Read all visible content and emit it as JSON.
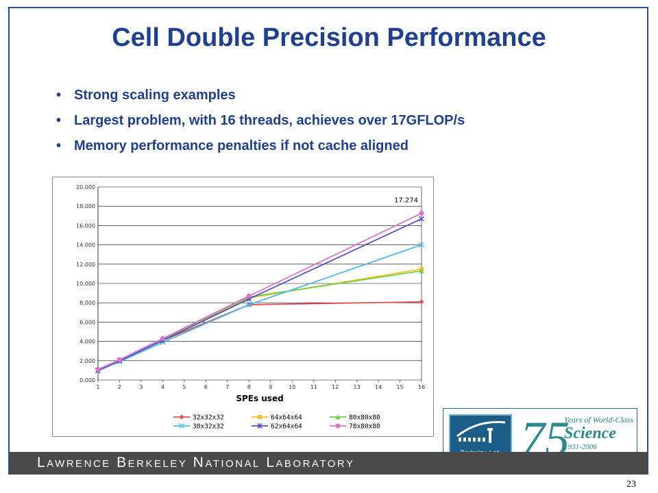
{
  "slide": {
    "title": "Cell Double Precision Performance",
    "bullets": [
      "Strong scaling examples",
      "Largest problem, with 16 threads, achieves over 17GFLOP/s",
      "Memory performance penalties if not cache aligned"
    ],
    "footer": "Lawrence Berkeley National Laboratory",
    "page_number": "23",
    "colors": {
      "title": "#1f3f8f",
      "frame": "#2b4f8c",
      "footer_bar": "#4a4a4a"
    }
  },
  "logo": {
    "lab_label": "Berkeley Lab",
    "anniversary_number": "75",
    "line1": "Years of World-Class",
    "line2": "Science",
    "line3": "1931-2006"
  },
  "chart_data": {
    "type": "line",
    "xlabel": "SPEs used",
    "ylabel": "",
    "x_categories": [
      1,
      2,
      3,
      4,
      5,
      6,
      7,
      8,
      9,
      10,
      11,
      12,
      13,
      14,
      15,
      16
    ],
    "y_ticks": [
      "0.000",
      "2.000",
      "4.000",
      "6.000",
      "8.000",
      "10.000",
      "12.000",
      "14.000",
      "16.000",
      "18.000",
      "20.000"
    ],
    "ylim": [
      0,
      20
    ],
    "grid": true,
    "legend_position": "bottom",
    "annotation": {
      "text": "17.274",
      "series": "78x80x80",
      "x": 16
    },
    "series": [
      {
        "name": "32x32x32",
        "color": "#e05050",
        "marker": "diamond",
        "x": [
          1,
          2,
          4,
          8,
          16
        ],
        "values": [
          1.0,
          2.0,
          4.1,
          7.8,
          8.1
        ]
      },
      {
        "name": "64x64x64",
        "color": "#f4c030",
        "marker": "square",
        "x": [
          1,
          2,
          4,
          8,
          16
        ],
        "values": [
          1.05,
          2.1,
          4.2,
          8.5,
          11.5
        ]
      },
      {
        "name": "80x80x80",
        "color": "#70d040",
        "marker": "triangle",
        "x": [
          1,
          2,
          4,
          8,
          16
        ],
        "values": [
          1.0,
          2.1,
          4.2,
          8.6,
          11.3
        ]
      },
      {
        "name": "30x32x32",
        "color": "#50b8e8",
        "marker": "x",
        "x": [
          1,
          2,
          4,
          8,
          16
        ],
        "values": [
          0.95,
          1.9,
          3.9,
          7.8,
          14.0
        ]
      },
      {
        "name": "62x64x64",
        "color": "#5050c8",
        "marker": "star",
        "x": [
          1,
          2,
          4,
          8,
          16
        ],
        "values": [
          1.0,
          2.0,
          4.1,
          8.4,
          16.7
        ]
      },
      {
        "name": "78x80x80",
        "color": "#e070d0",
        "marker": "circle",
        "x": [
          1,
          2,
          4,
          8,
          16
        ],
        "values": [
          1.1,
          2.1,
          4.3,
          8.7,
          17.274
        ]
      }
    ]
  }
}
